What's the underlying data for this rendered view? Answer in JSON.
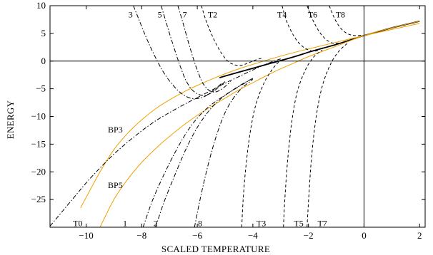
{
  "chart_data": {
    "type": "line",
    "title": "",
    "xlabel": "SCALED TEMPERATURE",
    "ylabel": "ENERGY",
    "xlim": [
      -11.3,
      2.2
    ],
    "ylim": [
      -30,
      10
    ],
    "xticks": [
      -10,
      -8,
      -6,
      -4,
      -2,
      0,
      2
    ],
    "yticks": [
      -25,
      -20,
      -15,
      -10,
      -5,
      0,
      5,
      10
    ],
    "grid": false,
    "reference_lines": {
      "x": 0,
      "y": 0
    },
    "colors": {
      "bp": "#f0a000",
      "line": "#000000"
    },
    "series": [
      {
        "id": "envelope",
        "name": "",
        "style": "solid",
        "color": "#000000",
        "x": [
          -5.2,
          -5.0,
          -4.5,
          -4.0,
          -3.5,
          -3.0,
          -2.5,
          -2.0,
          -1.5,
          -1.0,
          -0.5,
          0.0,
          0.5,
          1.0,
          1.5,
          2.0
        ],
        "y": [
          -3.0,
          -2.7,
          -2.0,
          -1.3,
          -0.6,
          0.1,
          0.8,
          1.6,
          2.3,
          3.0,
          3.8,
          4.6,
          5.3,
          6.0,
          6.6,
          7.2
        ]
      },
      {
        "id": "BP3",
        "name": "BP3",
        "style": "solid",
        "color": "#f0a000",
        "x": [
          -10.2,
          -9.5,
          -9.0,
          -8.5,
          -8.0,
          -7.5,
          -7.0,
          -6.5,
          -6.0,
          -5.5,
          -5.0,
          -4.5,
          -4.0,
          -3.0,
          -2.0,
          -1.0,
          0.0,
          1.0,
          2.0
        ],
        "y": [
          -26.5,
          -20.0,
          -16.0,
          -13.0,
          -10.6,
          -8.6,
          -7.0,
          -5.6,
          -4.4,
          -3.3,
          -2.3,
          -1.4,
          -0.6,
          0.9,
          2.2,
          3.4,
          4.6,
          5.7,
          6.8
        ]
      },
      {
        "id": "BP5",
        "name": "BP5",
        "style": "solid",
        "color": "#f0a000",
        "x": [
          -9.5,
          -9.0,
          -8.5,
          -8.0,
          -7.5,
          -7.0,
          -6.5,
          -6.0,
          -5.5,
          -5.0,
          -4.5,
          -4.0,
          -3.5,
          -3.0,
          -2.5,
          -2.0,
          -1.0,
          0.0,
          1.0,
          2.0
        ],
        "y": [
          -30.0,
          -25.0,
          -21.3,
          -18.3,
          -15.8,
          -13.6,
          -11.6,
          -9.8,
          -8.2,
          -6.7,
          -5.2,
          -3.9,
          -2.6,
          -1.4,
          -0.3,
          0.8,
          2.7,
          4.6,
          6.0,
          7.2
        ]
      },
      {
        "id": "T0",
        "name": "T0",
        "style": "dashdot",
        "color": "#000000",
        "x": [
          -11.3,
          -10.5,
          -10.0,
          -9.5,
          -9.0,
          -8.5,
          -8.0,
          -7.5,
          -7.0,
          -6.5,
          -6.0,
          -5.5,
          -5.0,
          -4.5,
          -4.0,
          -3.5,
          -3.0
        ],
        "y": [
          -29.8,
          -25.0,
          -22.0,
          -19.3,
          -16.8,
          -14.6,
          -12.6,
          -10.8,
          -9.3,
          -7.9,
          -6.6,
          -5.3,
          -4.0,
          -2.8,
          -1.6,
          -0.5,
          0.4
        ]
      },
      {
        "id": "1",
        "name": "1",
        "style": "dashdot",
        "color": "#000000",
        "x": [
          -7.95,
          -7.6,
          -7.2,
          -6.8,
          -6.4,
          -6.0,
          -5.6,
          -5.2,
          -4.8,
          -4.4,
          -4.0
        ],
        "y": [
          -30.0,
          -25.0,
          -20.5,
          -16.5,
          -13.0,
          -10.3,
          -8.3,
          -6.8,
          -5.5,
          -4.3,
          -3.1
        ]
      },
      {
        "id": "2",
        "name": "2",
        "style": "dashdot",
        "color": "#000000",
        "x": [
          -7.5,
          -7.2,
          -6.8,
          -6.4,
          -6.0,
          -5.6,
          -5.2,
          -4.8,
          -4.4,
          -4.0
        ],
        "y": [
          -30.0,
          -25.5,
          -20.5,
          -15.8,
          -12.0,
          -9.1,
          -7.0,
          -5.5,
          -4.2,
          -3.1
        ]
      },
      {
        "id": "8",
        "name": "8",
        "style": "dashdot",
        "color": "#000000",
        "x": [
          -6.1,
          -5.9,
          -5.6,
          -5.3,
          -5.0,
          -4.7,
          -4.4,
          -4.0
        ],
        "y": [
          -30.0,
          -25.0,
          -18.5,
          -13.3,
          -9.3,
          -6.7,
          -4.9,
          -3.3
        ]
      },
      {
        "id": "3",
        "name": "3",
        "style": "dashdot",
        "color": "#000000",
        "x": [
          -8.3,
          -8.1,
          -7.9,
          -7.7,
          -7.5,
          -7.3,
          -7.1,
          -6.9,
          -6.7,
          -6.5,
          -6.3,
          -6.1,
          -5.9,
          -5.7,
          -5.5,
          -5.3,
          -5.1
        ],
        "y": [
          10.0,
          7.5,
          5.0,
          2.7,
          0.6,
          -1.3,
          -2.9,
          -4.2,
          -5.3,
          -6.1,
          -6.6,
          -6.8,
          -6.7,
          -6.3,
          -5.6,
          -4.8,
          -3.9
        ]
      },
      {
        "id": "5",
        "name": "5",
        "style": "dashdot",
        "color": "#000000",
        "x": [
          -7.3,
          -7.15,
          -7.0,
          -6.85,
          -6.7,
          -6.55,
          -6.4,
          -6.2,
          -6.0,
          -5.8,
          -5.6,
          -5.4,
          -5.2,
          -5.0
        ],
        "y": [
          10.0,
          7.5,
          5.0,
          2.6,
          0.3,
          -1.8,
          -3.6,
          -5.1,
          -5.9,
          -6.2,
          -6.0,
          -5.4,
          -4.6,
          -3.7
        ]
      },
      {
        "id": "7",
        "name": "7",
        "style": "dashdot",
        "color": "#000000",
        "x": [
          -6.7,
          -6.55,
          -6.4,
          -6.25,
          -6.1,
          -5.95,
          -5.8,
          -5.6,
          -5.4,
          -5.2,
          -5.0,
          -4.8
        ],
        "y": [
          10.0,
          7.5,
          4.8,
          2.2,
          -0.2,
          -2.3,
          -4.0,
          -5.2,
          -5.6,
          -5.3,
          -4.6,
          -3.7
        ]
      },
      {
        "id": "T2",
        "name": "T2",
        "style": "dashed",
        "color": "#000000",
        "x": [
          -5.85,
          -5.7,
          -5.5,
          -5.3,
          -5.1,
          -4.9,
          -4.7,
          -4.5,
          -4.3,
          -4.1,
          -3.9,
          -3.7
        ],
        "y": [
          10.0,
          7.5,
          5.0,
          2.9,
          1.2,
          0.0,
          -0.6,
          -0.8,
          -0.6,
          -0.2,
          0.2,
          0.5
        ]
      },
      {
        "id": "T4",
        "name": "T4",
        "style": "dashed",
        "color": "#000000",
        "x": [
          -2.95,
          -2.8,
          -2.6,
          -2.4,
          -2.2,
          -2.0,
          -1.8,
          -1.6
        ],
        "y": [
          10.0,
          7.4,
          5.2,
          3.6,
          2.6,
          2.0,
          1.8,
          2.0
        ]
      },
      {
        "id": "T6",
        "name": "T6",
        "style": "dashed",
        "color": "#000000",
        "x": [
          -2.05,
          -1.85,
          -1.65,
          -1.45,
          -1.25,
          -1.05,
          -0.85
        ],
        "y": [
          10.0,
          7.5,
          5.6,
          4.3,
          3.5,
          3.2,
          3.3
        ]
      },
      {
        "id": "T8",
        "name": "T8",
        "style": "dashed",
        "color": "#000000",
        "x": [
          -1.25,
          -1.05,
          -0.85,
          -0.65,
          -0.45,
          -0.25,
          -0.05
        ],
        "y": [
          10.0,
          7.6,
          6.0,
          5.1,
          4.7,
          4.6,
          4.7
        ]
      },
      {
        "id": "T3",
        "name": "T3",
        "style": "dashed",
        "color": "#000000",
        "x": [
          -4.4,
          -4.35,
          -4.25,
          -4.1,
          -3.9,
          -3.6,
          -3.3,
          -3.0
        ],
        "y": [
          -30.0,
          -25.0,
          -19.0,
          -13.0,
          -8.0,
          -4.0,
          -1.5,
          0.2
        ]
      },
      {
        "id": "T5",
        "name": "T5",
        "style": "dashed",
        "color": "#000000",
        "x": [
          -2.9,
          -2.85,
          -2.75,
          -2.6,
          -2.4,
          -2.1,
          -1.8,
          -1.5
        ],
        "y": [
          -30.0,
          -25.0,
          -18.0,
          -11.0,
          -5.5,
          -1.5,
          0.8,
          2.0
        ]
      },
      {
        "id": "T7",
        "name": "T7",
        "style": "dashed",
        "color": "#000000",
        "x": [
          -2.05,
          -1.98,
          -1.88,
          -1.72,
          -1.5,
          -1.2,
          -0.9,
          -0.6
        ],
        "y": [
          -30.0,
          -24.0,
          -17.0,
          -10.0,
          -4.5,
          -0.5,
          1.8,
          3.2
        ]
      }
    ],
    "annotations": [
      {
        "id": "lbl_3",
        "text": "3",
        "x": -8.4,
        "y": 8.4
      },
      {
        "id": "lbl_5",
        "text": "5",
        "x": -7.35,
        "y": 8.4
      },
      {
        "id": "lbl_7",
        "text": "7",
        "x": -6.45,
        "y": 8.4
      },
      {
        "id": "lbl_T2",
        "text": "T2",
        "x": -5.45,
        "y": 8.4
      },
      {
        "id": "lbl_T4",
        "text": "T4",
        "x": -2.95,
        "y": 8.4
      },
      {
        "id": "lbl_T6",
        "text": "T6",
        "x": -1.85,
        "y": 8.4
      },
      {
        "id": "lbl_T8",
        "text": "T8",
        "x": -0.85,
        "y": 8.4
      },
      {
        "id": "lbl_BP3",
        "text": "BP3",
        "x": -8.95,
        "y": -12.4
      },
      {
        "id": "lbl_BP5",
        "text": "BP5",
        "x": -8.95,
        "y": -22.4
      },
      {
        "id": "lbl_T0",
        "text": "T0",
        "x": -10.3,
        "y": -29.3
      },
      {
        "id": "lbl_1",
        "text": "1",
        "x": -8.6,
        "y": -29.3
      },
      {
        "id": "lbl_2",
        "text": "2",
        "x": -7.5,
        "y": -29.3
      },
      {
        "id": "lbl_8",
        "text": "8",
        "x": -5.9,
        "y": -29.3
      },
      {
        "id": "lbl_T3",
        "text": "T3",
        "x": -3.7,
        "y": -29.3
      },
      {
        "id": "lbl_T5",
        "text": "T5",
        "x": -2.35,
        "y": -29.3
      },
      {
        "id": "lbl_T7",
        "text": "T7",
        "x": -1.5,
        "y": -29.3
      }
    ]
  }
}
